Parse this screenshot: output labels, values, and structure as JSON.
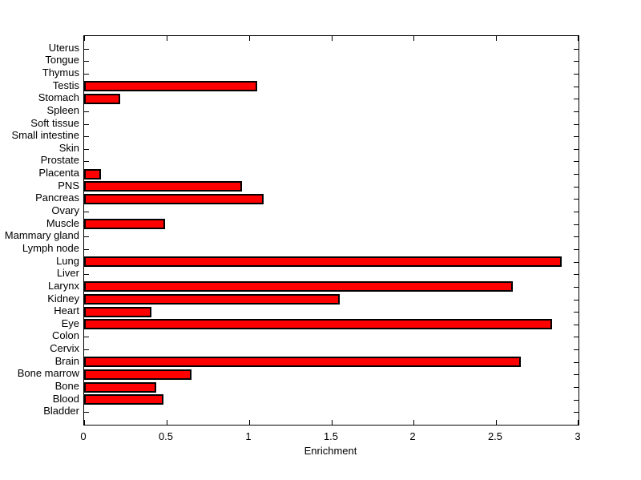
{
  "figure": {
    "background": "#ffffff"
  },
  "chart_data": {
    "type": "bar",
    "orientation": "horizontal",
    "xlabel": "Enrichment",
    "ylabel": "",
    "xlim": [
      0,
      3
    ],
    "xtick_values": [
      0,
      0.5,
      1,
      1.5,
      2,
      2.5,
      3
    ],
    "xtick_labels": [
      "0",
      "0.5",
      "1",
      "1.5",
      "2",
      "2.5",
      "3"
    ],
    "categories_top_to_bottom": [
      "Uterus",
      "Tongue",
      "Thymus",
      "Testis",
      "Stomach",
      "Spleen",
      "Soft tissue",
      "Small intestine",
      "Skin",
      "Prostate",
      "Placenta",
      "PNS",
      "Pancreas",
      "Ovary",
      "Muscle",
      "Mammary gland",
      "Lymph node",
      "Lung",
      "Liver",
      "Larynx",
      "Kidney",
      "Heart",
      "Eye",
      "Colon",
      "Cervix",
      "Brain",
      "Bone marrow",
      "Bone",
      "Blood",
      "Bladder"
    ],
    "values_top_to_bottom": [
      0,
      0,
      0,
      1.05,
      0.22,
      0,
      0,
      0,
      0,
      0,
      0.1,
      0.96,
      1.09,
      0,
      0.49,
      0,
      0,
      2.9,
      0,
      2.6,
      1.55,
      0.41,
      2.84,
      0,
      0,
      2.65,
      0.65,
      0.44,
      0.48,
      0
    ],
    "bar_color": "#ff0000",
    "bar_edge_color": "#000000",
    "axis_color": "#000000",
    "grid": false,
    "legend": "none"
  }
}
